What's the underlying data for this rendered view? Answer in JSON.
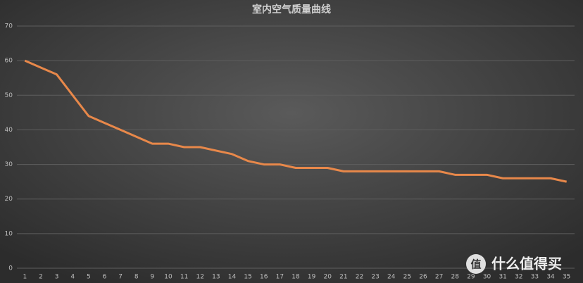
{
  "chart_data": {
    "type": "line",
    "title": "室内空气质量曲线",
    "categories": [
      1,
      2,
      3,
      4,
      5,
      6,
      7,
      8,
      9,
      10,
      11,
      12,
      13,
      14,
      15,
      16,
      17,
      18,
      19,
      20,
      21,
      22,
      23,
      24,
      25,
      26,
      27,
      28,
      29,
      30,
      31,
      32,
      33,
      34,
      35
    ],
    "values": [
      60,
      58,
      56,
      50,
      44,
      42,
      40,
      38,
      36,
      36,
      35,
      35,
      34,
      33,
      31,
      30,
      30,
      29,
      29,
      29,
      28,
      28,
      28,
      28,
      28,
      28,
      28,
      27,
      27,
      27,
      26,
      26,
      26,
      26,
      25
    ],
    "color": "#e8884a",
    "ylim": [
      0,
      70
    ],
    "yticks": [
      0,
      10,
      20,
      30,
      40,
      50,
      60,
      70
    ],
    "grid": true
  },
  "watermark": {
    "icon": "值",
    "text": "什么值得买"
  }
}
